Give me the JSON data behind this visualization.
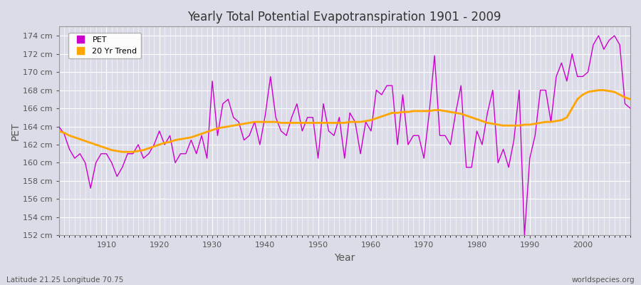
{
  "title": "Yearly Total Potential Evapotranspiration 1901 - 2009",
  "xlabel": "Year",
  "ylabel": "PET",
  "subtitle_left": "Latitude 21.25 Longitude 70.75",
  "subtitle_right": "worldspecies.org",
  "pet_color": "#cc00cc",
  "trend_color": "#ffa500",
  "background_color": "#e0e0e8",
  "plot_bg_color": "#e0e0e8",
  "ylim": [
    152,
    175
  ],
  "xlim": [
    1901,
    2009
  ],
  "ytick_labels": [
    "152 cm",
    "154 cm",
    "156 cm",
    "158 cm",
    "160 cm",
    "162 cm",
    "164 cm",
    "166 cm",
    "168 cm",
    "170 cm",
    "172 cm",
    "174 cm"
  ],
  "ytick_values": [
    152,
    154,
    156,
    158,
    160,
    162,
    164,
    166,
    168,
    170,
    172,
    174
  ],
  "years": [
    1901,
    1902,
    1903,
    1904,
    1905,
    1906,
    1907,
    1908,
    1909,
    1910,
    1911,
    1912,
    1913,
    1914,
    1915,
    1916,
    1917,
    1918,
    1919,
    1920,
    1921,
    1922,
    1923,
    1924,
    1925,
    1926,
    1927,
    1928,
    1929,
    1930,
    1931,
    1932,
    1933,
    1934,
    1935,
    1936,
    1937,
    1938,
    1939,
    1940,
    1941,
    1942,
    1943,
    1944,
    1945,
    1946,
    1947,
    1948,
    1949,
    1950,
    1951,
    1952,
    1953,
    1954,
    1955,
    1956,
    1957,
    1958,
    1959,
    1960,
    1961,
    1962,
    1963,
    1964,
    1965,
    1966,
    1967,
    1968,
    1969,
    1970,
    1971,
    1972,
    1973,
    1974,
    1975,
    1976,
    1977,
    1978,
    1979,
    1980,
    1981,
    1982,
    1983,
    1984,
    1985,
    1986,
    1987,
    1988,
    1989,
    1990,
    1991,
    1992,
    1993,
    1994,
    1995,
    1996,
    1997,
    1998,
    1999,
    2000,
    2001,
    2002,
    2003,
    2004,
    2005,
    2006,
    2007,
    2008,
    2009
  ],
  "pet_values": [
    164.0,
    163.2,
    161.5,
    160.5,
    161.0,
    160.0,
    157.2,
    160.0,
    161.0,
    161.0,
    160.0,
    158.5,
    159.5,
    161.0,
    161.0,
    162.0,
    160.5,
    161.0,
    162.0,
    163.5,
    162.0,
    163.0,
    160.0,
    161.0,
    161.0,
    162.5,
    161.0,
    163.0,
    160.5,
    169.0,
    163.0,
    166.5,
    167.0,
    165.0,
    164.5,
    162.5,
    163.0,
    164.5,
    162.0,
    165.2,
    169.5,
    165.0,
    163.5,
    163.0,
    165.0,
    166.5,
    163.5,
    165.0,
    165.0,
    160.5,
    166.5,
    163.5,
    163.0,
    165.0,
    160.5,
    165.5,
    164.5,
    161.0,
    164.5,
    163.5,
    168.0,
    167.5,
    168.5,
    168.5,
    162.0,
    167.5,
    162.0,
    163.0,
    163.0,
    160.5,
    165.5,
    171.8,
    163.0,
    163.0,
    162.0,
    165.5,
    168.5,
    159.5,
    159.5,
    163.5,
    162.0,
    165.5,
    168.0,
    160.0,
    161.5,
    159.5,
    162.5,
    168.0,
    152.0,
    160.5,
    163.0,
    168.0,
    168.0,
    164.5,
    169.5,
    171.0,
    169.0,
    172.0,
    169.5,
    169.5,
    170.0,
    173.0,
    174.0,
    172.5,
    173.5,
    174.0,
    173.0,
    166.5,
    166.0
  ],
  "trend_years": [
    1901,
    1902,
    1903,
    1904,
    1905,
    1906,
    1907,
    1908,
    1909,
    1910,
    1911,
    1912,
    1913,
    1914,
    1915,
    1916,
    1917,
    1918,
    1919,
    1920,
    1921,
    1922,
    1923,
    1924,
    1925,
    1926,
    1927,
    1928,
    1929,
    1930,
    1931,
    1932,
    1933,
    1934,
    1935,
    1936,
    1937,
    1938,
    1939,
    1940,
    1941,
    1942,
    1943,
    1944,
    1945,
    1946,
    1947,
    1948,
    1949,
    1950,
    1951,
    1952,
    1953,
    1954,
    1955,
    1956,
    1957,
    1958,
    1959,
    1960,
    1961,
    1962,
    1963,
    1964,
    1965,
    1966,
    1967,
    1968,
    1969,
    1970,
    1971,
    1972,
    1973,
    1974,
    1975,
    1976,
    1977,
    1978,
    1979,
    1980,
    1981,
    1982,
    1983,
    1984,
    1985,
    1986,
    1987,
    1988,
    1989,
    1990,
    1991,
    1992,
    1993,
    1994,
    1995,
    1996,
    1997,
    1998,
    1999,
    2000,
    2001,
    2002,
    2003,
    2004,
    2005,
    2006,
    2007,
    2008,
    2009
  ],
  "trend_values": [
    163.5,
    163.3,
    163.0,
    162.8,
    162.6,
    162.4,
    162.2,
    162.0,
    161.8,
    161.6,
    161.4,
    161.3,
    161.2,
    161.2,
    161.2,
    161.3,
    161.4,
    161.6,
    161.8,
    162.0,
    162.2,
    162.3,
    162.5,
    162.6,
    162.7,
    162.8,
    163.0,
    163.2,
    163.4,
    163.6,
    163.8,
    163.9,
    164.0,
    164.1,
    164.2,
    164.3,
    164.4,
    164.5,
    164.5,
    164.5,
    164.5,
    164.5,
    164.4,
    164.4,
    164.4,
    164.4,
    164.4,
    164.4,
    164.4,
    164.4,
    164.4,
    164.4,
    164.4,
    164.4,
    164.4,
    164.5,
    164.5,
    164.5,
    164.6,
    164.7,
    164.9,
    165.1,
    165.3,
    165.5,
    165.5,
    165.6,
    165.6,
    165.7,
    165.7,
    165.7,
    165.7,
    165.8,
    165.8,
    165.7,
    165.6,
    165.5,
    165.4,
    165.2,
    165.0,
    164.8,
    164.6,
    164.4,
    164.3,
    164.2,
    164.1,
    164.1,
    164.1,
    164.1,
    164.2,
    164.2,
    164.3,
    164.4,
    164.5,
    164.5,
    164.6,
    164.7,
    165.0,
    166.0,
    167.0,
    167.5,
    167.8,
    167.9,
    168.0,
    168.0,
    167.9,
    167.8,
    167.5,
    167.2,
    167.0
  ]
}
